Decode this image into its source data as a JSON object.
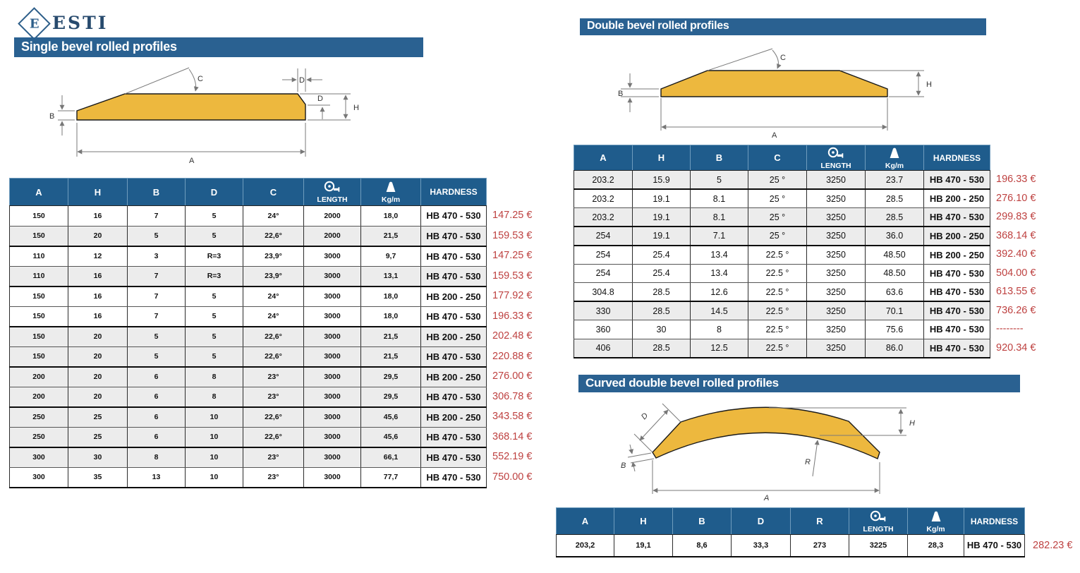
{
  "brand": {
    "name": "ESTI",
    "monogram": "E"
  },
  "colors": {
    "bar_blue": "#2A6191",
    "header_blue": "#1F5C8C",
    "price_red": "#BE4140",
    "profile_yellow": "#EDB83E",
    "row_gray": "#ECECEC"
  },
  "sections": [
    {
      "id": "single",
      "title": "Single bevel rolled profiles",
      "diagram": {
        "a": "A",
        "b": "B",
        "c": "C",
        "d_top": "D",
        "d_side": "D",
        "h": "H"
      },
      "columns": [
        {
          "key": "a",
          "label": "A"
        },
        {
          "key": "h",
          "label": "H"
        },
        {
          "key": "b",
          "label": "B"
        },
        {
          "key": "d",
          "label": "D"
        },
        {
          "key": "c",
          "label": "C"
        },
        {
          "key": "len",
          "label": "LENGTH",
          "icon": "tape-measure-icon"
        },
        {
          "key": "kg",
          "label": "Kg/m",
          "icon": "weight-icon"
        },
        {
          "key": "hard",
          "label": "HARDNESS"
        }
      ],
      "rows": [
        {
          "a": "150",
          "h": "16",
          "b": "7",
          "d": "5",
          "c": "24°",
          "len": "2000",
          "kg": "18,0",
          "hard": "HB 470 - 530",
          "price": "147.25 €",
          "shade": false,
          "ge": false
        },
        {
          "a": "150",
          "h": "20",
          "b": "5",
          "d": "5",
          "c": "22,6°",
          "len": "2000",
          "kg": "21,5",
          "hard": "HB 470 - 530",
          "price": "159.53 €",
          "shade": true,
          "ge": true
        },
        {
          "a": "110",
          "h": "12",
          "b": "3",
          "d": "R=3",
          "c": "23,9°",
          "len": "3000",
          "kg": "9,7",
          "hard": "HB 470 - 530",
          "price": "147.25 €",
          "shade": false,
          "ge": false
        },
        {
          "a": "110",
          "h": "16",
          "b": "7",
          "d": "R=3",
          "c": "23,9°",
          "len": "3000",
          "kg": "13,1",
          "hard": "HB 470 - 530",
          "price": "159.53 €",
          "shade": true,
          "ge": true
        },
        {
          "a": "150",
          "h": "16",
          "b": "7",
          "d": "5",
          "c": "24°",
          "len": "3000",
          "kg": "18,0",
          "hard": "HB 200 - 250",
          "price": "177.92 €",
          "shade": false,
          "ge": false
        },
        {
          "a": "150",
          "h": "16",
          "b": "7",
          "d": "5",
          "c": "24°",
          "len": "3000",
          "kg": "18,0",
          "hard": "HB 470 - 530",
          "price": "196.33 €",
          "shade": false,
          "ge": true
        },
        {
          "a": "150",
          "h": "20",
          "b": "5",
          "d": "5",
          "c": "22,6°",
          "len": "3000",
          "kg": "21,5",
          "hard": "HB 200 - 250",
          "price": "202.48 €",
          "shade": true,
          "ge": false
        },
        {
          "a": "150",
          "h": "20",
          "b": "5",
          "d": "5",
          "c": "22,6°",
          "len": "3000",
          "kg": "21,5",
          "hard": "HB 470 - 530",
          "price": "220.88 €",
          "shade": true,
          "ge": true
        },
        {
          "a": "200",
          "h": "20",
          "b": "6",
          "d": "8",
          "c": "23°",
          "len": "3000",
          "kg": "29,5",
          "hard": "HB 200 - 250",
          "price": "276.00 €",
          "shade": true,
          "ge": false
        },
        {
          "a": "200",
          "h": "20",
          "b": "6",
          "d": "8",
          "c": "23°",
          "len": "3000",
          "kg": "29,5",
          "hard": "HB 470 - 530",
          "price": "306.78 €",
          "shade": true,
          "ge": true
        },
        {
          "a": "250",
          "h": "25",
          "b": "6",
          "d": "10",
          "c": "22,6°",
          "len": "3000",
          "kg": "45,6",
          "hard": "HB 200 - 250",
          "price": "343.58 €",
          "shade": true,
          "ge": false
        },
        {
          "a": "250",
          "h": "25",
          "b": "6",
          "d": "10",
          "c": "22,6°",
          "len": "3000",
          "kg": "45,6",
          "hard": "HB 470 - 530",
          "price": "368.14 €",
          "shade": true,
          "ge": true
        },
        {
          "a": "300",
          "h": "30",
          "b": "8",
          "d": "10",
          "c": "23°",
          "len": "3000",
          "kg": "66,1",
          "hard": "HB 470 - 530",
          "price": "552.19 €",
          "shade": true,
          "ge": false
        },
        {
          "a": "300",
          "h": "35",
          "b": "13",
          "d": "10",
          "c": "23°",
          "len": "3000",
          "kg": "77,7",
          "hard": "HB 470 - 530",
          "price": "750.00 €",
          "shade": false,
          "ge": true
        }
      ]
    },
    {
      "id": "double",
      "title": "Double bevel rolled profiles",
      "diagram": {
        "a": "A",
        "b": "B",
        "c": "C",
        "h": "H"
      },
      "columns": [
        {
          "key": "a",
          "label": "A"
        },
        {
          "key": "h",
          "label": "H"
        },
        {
          "key": "b",
          "label": "B"
        },
        {
          "key": "c",
          "label": "C"
        },
        {
          "key": "len",
          "label": "LENGTH",
          "icon": "tape-measure-icon"
        },
        {
          "key": "kg",
          "label": "Kg/m",
          "icon": "weight-icon"
        },
        {
          "key": "hard",
          "label": "HARDNESS"
        }
      ],
      "rows": [
        {
          "a": "203.2",
          "h": "15.9",
          "b": "5",
          "c": "25 °",
          "len": "3250",
          "kg": "23.7",
          "hard": "HB 470 - 530",
          "price": "196.33 €",
          "shade": true,
          "ge": true
        },
        {
          "a": "203.2",
          "h": "19.1",
          "b": "8.1",
          "c": "25 °",
          "len": "3250",
          "kg": "28.5",
          "hard": "HB 200 - 250",
          "price": "276.10 €",
          "shade": false,
          "ge": false
        },
        {
          "a": "203.2",
          "h": "19.1",
          "b": "8.1",
          "c": "25 °",
          "len": "3250",
          "kg": "28.5",
          "hard": "HB 470 - 530",
          "price": "299.83 €",
          "shade": true,
          "ge": true
        },
        {
          "a": "254",
          "h": "19.1",
          "b": "7.1",
          "c": "25 °",
          "len": "3250",
          "kg": "36.0",
          "hard": "HB 200 - 250",
          "price": "368.14 €",
          "shade": true,
          "ge": true
        },
        {
          "a": "254",
          "h": "25.4",
          "b": "13.4",
          "c": "22.5 °",
          "len": "3250",
          "kg": "48.50",
          "hard": "HB 200 - 250",
          "price": "392.40 €",
          "shade": false,
          "ge": false
        },
        {
          "a": "254",
          "h": "25.4",
          "b": "13.4",
          "c": "22.5 °",
          "len": "3250",
          "kg": "48.50",
          "hard": "HB 470 - 530",
          "price": "504.00 €",
          "shade": false,
          "ge": false
        },
        {
          "a": "304.8",
          "h": "28.5",
          "b": "12.6",
          "c": "22.5 °",
          "len": "3250",
          "kg": "63.6",
          "hard": "HB 470 - 530",
          "price": "613.55 €",
          "shade": false,
          "ge": true
        },
        {
          "a": "330",
          "h": "28.5",
          "b": "14.5",
          "c": "22.5 °",
          "len": "3250",
          "kg": "70.1",
          "hard": "HB 470 - 530",
          "price": "736.26 €",
          "shade": true,
          "ge": false
        },
        {
          "a": "360",
          "h": "30",
          "b": "8",
          "c": "22.5 °",
          "len": "3250",
          "kg": "75.6",
          "hard": "HB 470 - 530",
          "price": "--------",
          "shade": false,
          "ge": false
        },
        {
          "a": "406",
          "h": "28.5",
          "b": "12.5",
          "c": "22.5 °",
          "len": "3250",
          "kg": "86.0",
          "hard": "HB 470 - 530",
          "price": "920.34 €",
          "shade": true,
          "ge": true
        }
      ]
    },
    {
      "id": "curved",
      "title": "Curved double bevel rolled profiles",
      "diagram": {
        "a": "A",
        "b": "B",
        "d": "D",
        "r": "R",
        "h": "H"
      },
      "columns": [
        {
          "key": "a",
          "label": "A"
        },
        {
          "key": "h",
          "label": "H"
        },
        {
          "key": "b",
          "label": "B"
        },
        {
          "key": "d",
          "label": "D"
        },
        {
          "key": "r",
          "label": "R"
        },
        {
          "key": "len",
          "label": "LENGTH",
          "icon": "tape-measure-icon"
        },
        {
          "key": "kg",
          "label": "Kg/m",
          "icon": "weight-icon"
        },
        {
          "key": "hard",
          "label": "HARDNESS"
        }
      ],
      "rows": [
        {
          "a": "203,2",
          "h": "19,1",
          "b": "8,6",
          "d": "33,3",
          "r": "273",
          "len": "3225",
          "kg": "28,3",
          "hard": "HB 470 - 530",
          "price": "282.23 €",
          "shade": false,
          "ge": true
        }
      ]
    }
  ]
}
